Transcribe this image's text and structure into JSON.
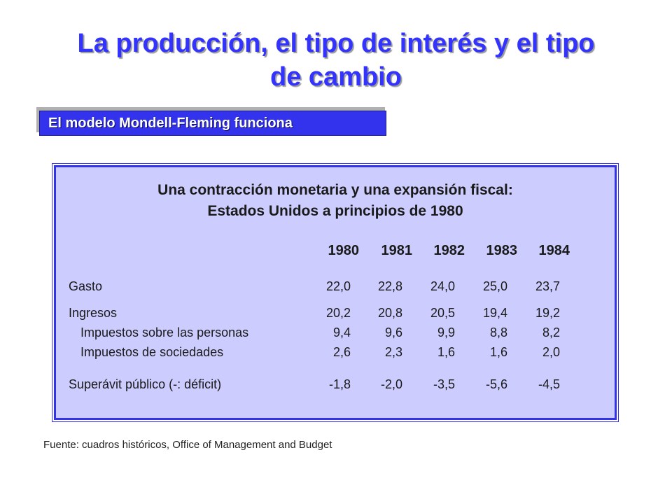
{
  "title_line1": "La producción, el tipo de interés y el tipo",
  "title_line2": "de cambio",
  "subtitle": "El modelo Mondell-Fleming funciona",
  "panel": {
    "heading_line1": "Una contracción monetaria y una expansión fiscal:",
    "heading_line2": "Estados Unidos a principios de 1980",
    "years": [
      "1980",
      "1981",
      "1982",
      "1983",
      "1984"
    ],
    "rows": [
      {
        "label": "Gasto",
        "values": [
          "22,0",
          "22,8",
          "24,0",
          "25,0",
          "23,7"
        ]
      },
      {
        "label": "Ingresos",
        "values": [
          "20,2",
          "20,8",
          "20,5",
          "19,4",
          "19,2"
        ]
      },
      {
        "label": "Impuestos sobre las personas",
        "values": [
          "9,4",
          "9,6",
          "9,9",
          "8,8",
          "8,2"
        ]
      },
      {
        "label": "Impuestos de sociedades",
        "values": [
          "2,6",
          "2,3",
          "1,6",
          "1,6",
          "2,0"
        ]
      },
      {
        "label": "Superávit público (-: déficit)",
        "values": [
          "-1,8",
          "-2,0",
          "-3,5",
          "-5,6",
          "-4,5"
        ]
      }
    ]
  },
  "source": "Fuente:  cuadros históricos, Office of Management and Budget"
}
